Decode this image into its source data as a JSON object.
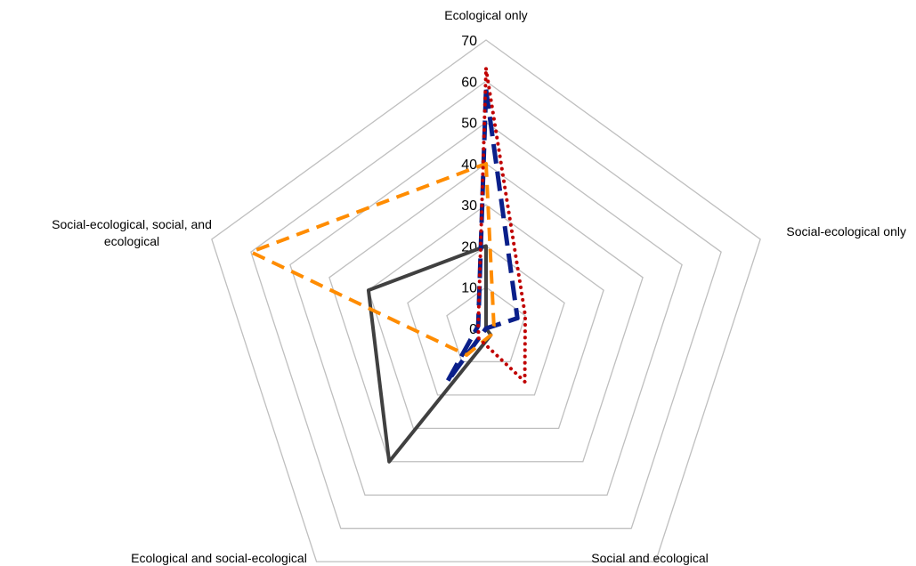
{
  "chart_data": {
    "type": "radar",
    "axes": [
      "Ecological only",
      "Social-ecological only",
      "Social and ecological",
      "Ecological and social-ecological",
      "Social-ecological, social, and ecological"
    ],
    "axis_label_lines": [
      [
        "Ecological only"
      ],
      [
        "Social-ecological only"
      ],
      [
        "Social and ecological"
      ],
      [
        "Ecological and social-ecological"
      ],
      [
        "Social-ecological, social, and",
        "ecological"
      ]
    ],
    "ticks": [
      0,
      10,
      20,
      30,
      40,
      50,
      60,
      70
    ],
    "rmax": 70,
    "legend": "none",
    "series": [
      {
        "values": [
          20,
          0,
          2,
          40,
          30
        ],
        "color": "#404040",
        "style": "solid"
      },
      {
        "values": [
          58,
          8,
          0,
          16,
          2
        ],
        "color": "#0a1f8a",
        "style": "long-dash"
      },
      {
        "values": [
          40,
          2,
          2,
          8,
          60
        ],
        "color": "#ff8c00",
        "style": "dash"
      },
      {
        "values": [
          63,
          10,
          16,
          3,
          2
        ],
        "color": "#c00000",
        "style": "dot"
      }
    ]
  }
}
